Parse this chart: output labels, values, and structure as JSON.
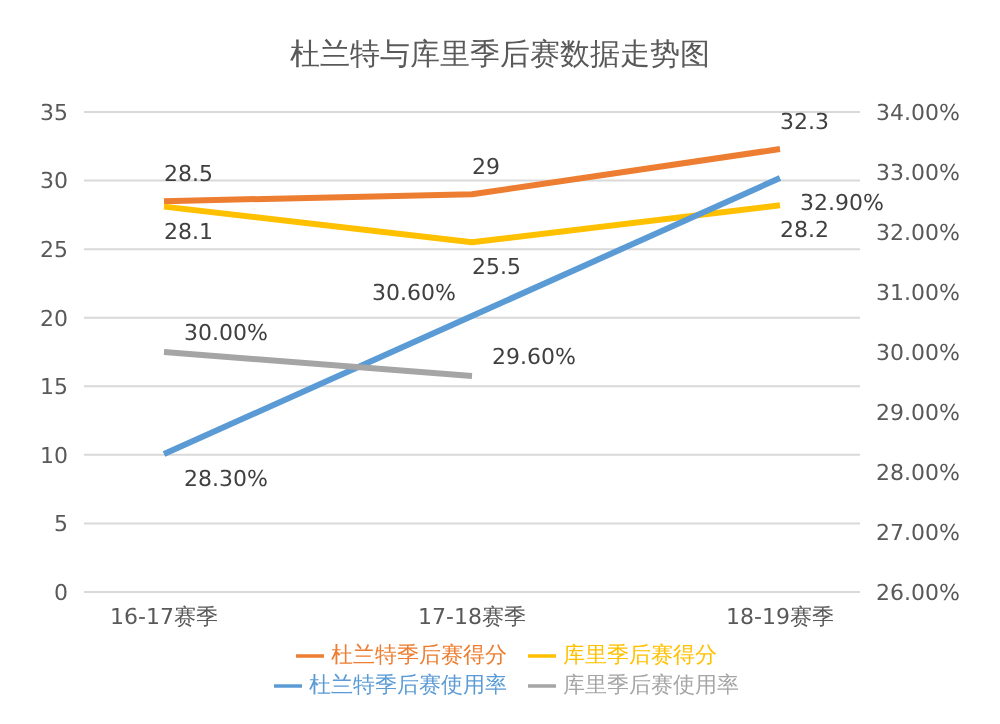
{
  "chart_data": {
    "type": "line",
    "title": "杜兰特与库里季后赛数据走势图",
    "categories": [
      "16-17赛季",
      "17-18赛季",
      "18-19赛季"
    ],
    "series": [
      {
        "name": "杜兰特季后赛得分",
        "color": "#ed7d31",
        "values": [
          28.5,
          29,
          32.3
        ],
        "value_labels": [
          "28.5",
          "29",
          "32.3"
        ]
      },
      {
        "name": "库里季后赛得分",
        "color": "#ffc000",
        "values": [
          28.1,
          25.5,
          28.2
        ],
        "value_labels": [
          "28.1",
          "25.5",
          "28.2"
        ]
      },
      {
        "name": "杜兰特季后赛使用率",
        "color": "#5b9bd5",
        "axis": "y2",
        "values": [
          28.3,
          30.6,
          32.9
        ],
        "value_labels": [
          "28.30%",
          "30.60%",
          "32.90%"
        ]
      },
      {
        "name": "库里季后赛使用率",
        "color": "#a5a5a5",
        "axis": "y2",
        "values": [
          30.0,
          29.6,
          null
        ],
        "value_labels": [
          "30.00%",
          "29.60%",
          null
        ]
      }
    ],
    "ylim": [
      0,
      35
    ],
    "yticks": [
      0,
      5,
      10,
      15,
      20,
      25,
      30,
      35
    ],
    "y2lim": [
      26,
      34
    ],
    "y2ticks": [
      {
        "value": 26,
        "label": "26.00%"
      },
      {
        "value": 27,
        "label": "27.00%"
      },
      {
        "value": 28,
        "label": "28.00%"
      },
      {
        "value": 29,
        "label": "29.00%"
      },
      {
        "value": 30,
        "label": "30.00%"
      },
      {
        "value": 31,
        "label": "31.00%"
      },
      {
        "value": 32,
        "label": "32.00%"
      },
      {
        "value": 33,
        "label": "33.00%"
      },
      {
        "value": 34,
        "label": "34.00%"
      }
    ],
    "grid": "y",
    "legend": "bottom",
    "marker": "none",
    "line_style": "solid"
  }
}
